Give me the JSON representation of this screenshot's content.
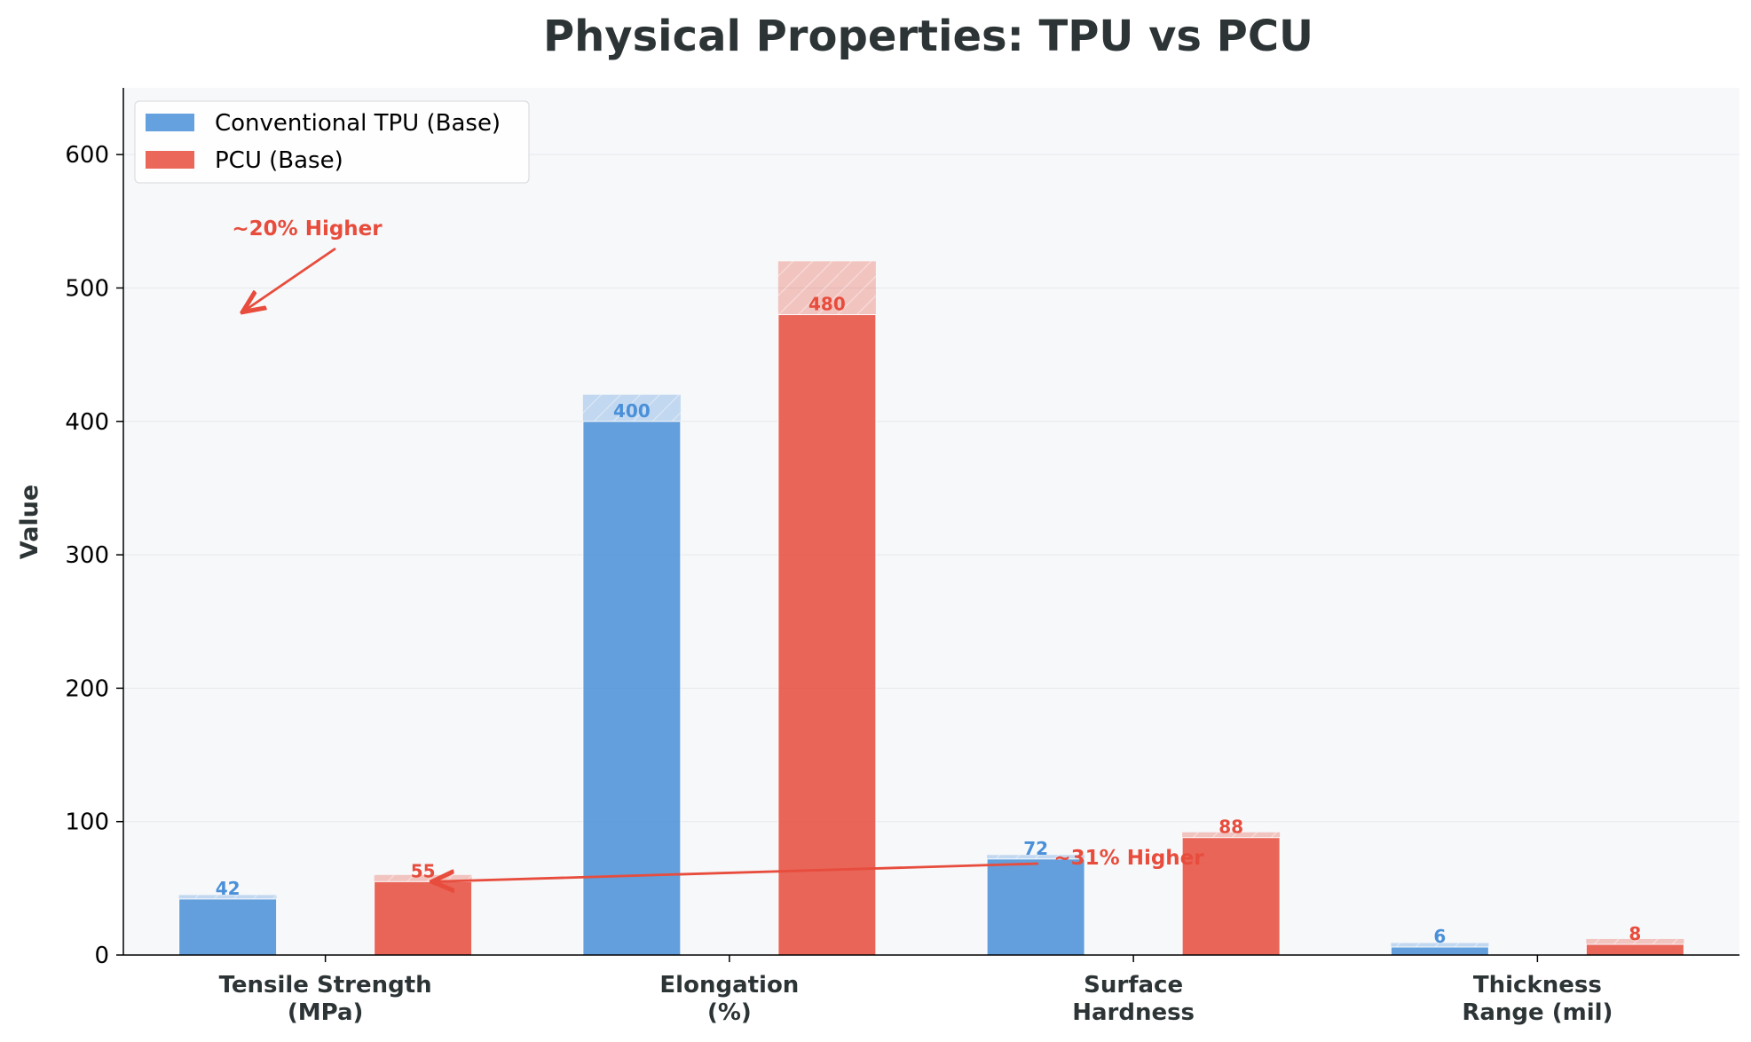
{
  "chart_data": {
    "type": "bar",
    "title": "Physical Properties: TPU vs PCU",
    "xlabel": "",
    "ylabel": "Value",
    "ylim": [
      0,
      650
    ],
    "yticks": [
      0,
      100,
      200,
      300,
      400,
      500,
      600
    ],
    "grid": "y",
    "legend_position": "top-left",
    "categories": [
      "Tensile Strength\n(MPa)",
      "Elongation\n(%)",
      "Surface\nHardness",
      "Thickness\nRange (mil)"
    ],
    "series": [
      {
        "name": "Conventional TPU (Base)",
        "color": "#4a90d9",
        "values": [
          42,
          400,
          72,
          6
        ],
        "range_max": [
          45,
          420,
          75,
          9
        ]
      },
      {
        "name": "PCU (Base)",
        "color": "#e74c3c",
        "values": [
          55,
          480,
          88,
          8
        ],
        "range_max": [
          60,
          520,
          92,
          12
        ]
      }
    ],
    "annotations": [
      {
        "text": "~20% Higher",
        "text_at": [
          0.8,
          550
        ],
        "arrow_to": [
          0.8,
          483
        ]
      },
      {
        "text": "~31% Higher",
        "text_at": [
          2.0,
          72
        ],
        "arrow_to": [
          1.27,
          55
        ]
      }
    ]
  },
  "colors": {
    "plot_background": "#f7f8fa",
    "tpu": "#4a90d9",
    "pcu": "#e74c3c",
    "annotation": "#e74c3c",
    "title": "#2d3436"
  }
}
